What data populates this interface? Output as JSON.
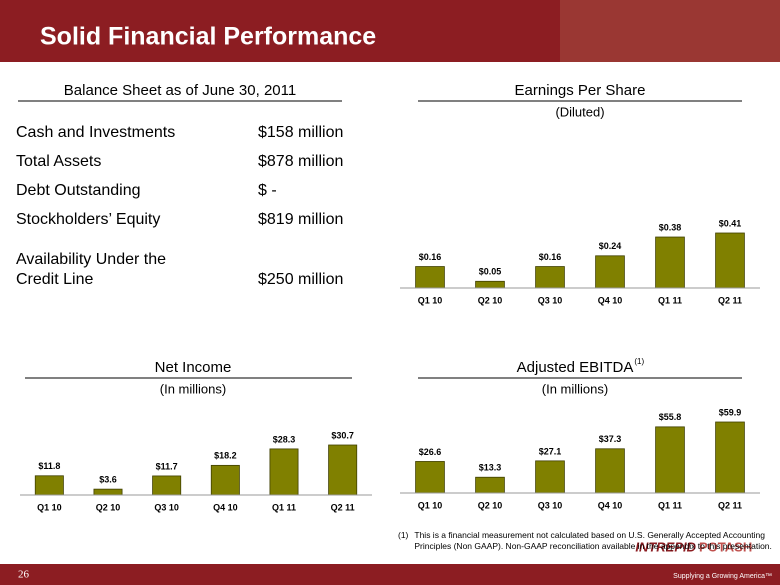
{
  "header": {
    "title": "Solid Financial Performance"
  },
  "balance_sheet": {
    "title": "Balance Sheet as of June 30, 2011",
    "rows": [
      {
        "label": "Cash and Investments",
        "value": "$158  million"
      },
      {
        "label": "Total Assets",
        "value": "$878  million"
      },
      {
        "label": "Debt Outstanding",
        "value": "$  -"
      },
      {
        "label": "Stockholders’ Equity",
        "value": "$819  million"
      },
      {
        "label": [
          "Availability Under the",
          "Credit Line"
        ],
        "value": "$250  million"
      }
    ]
  },
  "chart_data": [
    {
      "type": "bar",
      "title": "Earnings Per Share",
      "subtitle": "(Diluted)",
      "categories": [
        "Q1 10",
        "Q2 10",
        "Q3 10",
        "Q4 10",
        "Q1 11",
        "Q2 11"
      ],
      "values": [
        0.16,
        0.05,
        0.16,
        0.24,
        0.38,
        0.41
      ],
      "value_labels": [
        "$0.16",
        "$0.05",
        "$0.16",
        "$0.24",
        "$0.38",
        "$0.41"
      ],
      "color": "#808000"
    },
    {
      "type": "bar",
      "title": "Net Income",
      "subtitle": "(In millions)",
      "categories": [
        "Q1 10",
        "Q2 10",
        "Q3 10",
        "Q4 10",
        "Q1 11",
        "Q2 11"
      ],
      "values": [
        11.8,
        3.6,
        11.7,
        18.2,
        28.3,
        30.7
      ],
      "value_labels": [
        "$11.8",
        "$3.6",
        "$11.7",
        "$18.2",
        "$28.3",
        "$30.7"
      ],
      "color": "#808000"
    },
    {
      "type": "bar",
      "title": "Adjusted EBITDA",
      "title_note": "(1)",
      "subtitle": "(In millions)",
      "categories": [
        "Q1 10",
        "Q2 10",
        "Q3 10",
        "Q4 10",
        "Q1 11",
        "Q2 11"
      ],
      "values": [
        26.6,
        13.3,
        27.1,
        37.3,
        55.8,
        59.9
      ],
      "value_labels": [
        "$26.6",
        "$13.3",
        "$27.1",
        "$37.3",
        "$55.8",
        "$59.9"
      ],
      "color": "#808000"
    }
  ],
  "footnote": {
    "marker": "(1)",
    "text": "This is a financial  measurement not calculated based on U.S. Generally Accepted Accounting Principles (Non GAAP).   Non-GAAP reconciliation available in the appendix to this presentation."
  },
  "footer": {
    "page": "26",
    "logo": [
      "INTREPID",
      "POTASH"
    ],
    "tagline": "Supplying a Growing America™"
  }
}
